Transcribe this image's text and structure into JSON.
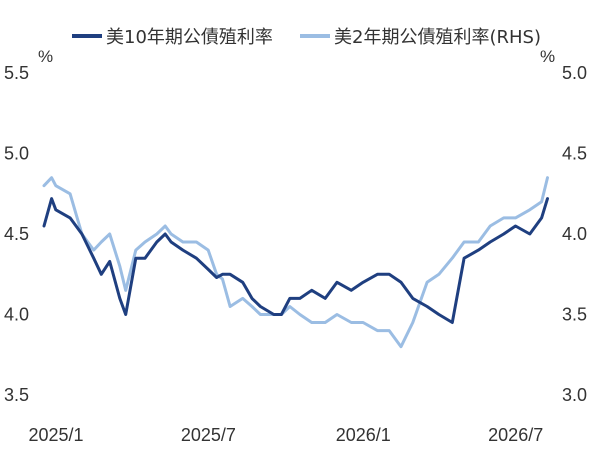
{
  "chart_data": {
    "type": "line",
    "title": "",
    "xlabel": "",
    "ylabel": "",
    "left_unit": "%",
    "right_unit": "%",
    "x_ticks": [
      "2025/1",
      "2025/7",
      "2026/1",
      "2026/7"
    ],
    "left_axis": {
      "ticks": [
        "5.5",
        "5.0",
        "4.5",
        "4.0",
        "3.5"
      ],
      "ylim": [
        3.5,
        5.5
      ]
    },
    "right_axis": {
      "ticks": [
        "5.0",
        "4.5",
        "4.0",
        "3.5",
        "3.0"
      ],
      "ylim": [
        3.0,
        5.0
      ]
    },
    "grid": false,
    "legend_position": "top",
    "series": [
      {
        "name": "美10年期公債殖利率",
        "axis": "left",
        "color": "#1f3f80",
        "x": [
          "2025-01-01",
          "2025-01-10",
          "2025-01-15",
          "2025-02-01",
          "2025-02-15",
          "2025-03-01",
          "2025-03-10",
          "2025-03-20",
          "2025-04-01",
          "2025-04-08",
          "2025-04-20",
          "2025-05-01",
          "2025-05-15",
          "2025-05-25",
          "2025-06-01",
          "2025-06-15",
          "2025-07-01",
          "2025-07-15",
          "2025-07-25",
          "2025-08-01",
          "2025-08-10",
          "2025-08-25",
          "2025-09-05",
          "2025-09-15",
          "2025-10-01",
          "2025-10-10",
          "2025-10-20",
          "2025-11-01",
          "2025-11-15",
          "2025-12-01",
          "2025-12-15",
          "2026-01-01",
          "2026-01-15",
          "2026-02-01",
          "2026-02-15",
          "2026-03-01",
          "2026-03-15",
          "2026-04-01",
          "2026-04-15",
          "2026-05-01",
          "2026-05-15",
          "2026-06-01",
          "2026-06-15",
          "2026-07-01",
          "2026-07-15",
          "2026-08-01",
          "2026-08-15",
          "2026-08-22"
        ],
        "values": [
          4.55,
          4.72,
          4.65,
          4.6,
          4.5,
          4.35,
          4.25,
          4.33,
          4.1,
          4.0,
          4.35,
          4.35,
          4.45,
          4.5,
          4.45,
          4.4,
          4.35,
          4.28,
          4.23,
          4.25,
          4.25,
          4.2,
          4.1,
          4.05,
          4.0,
          4.0,
          4.1,
          4.1,
          4.15,
          4.1,
          4.2,
          4.15,
          4.2,
          4.25,
          4.25,
          4.2,
          4.1,
          4.05,
          4.0,
          3.95,
          4.35,
          4.4,
          4.45,
          4.5,
          4.55,
          4.5,
          4.6,
          4.72
        ]
      },
      {
        "name": "美2年期公債殖利率(RHS)",
        "axis": "right",
        "color": "#9bbde3",
        "x": [
          "2025-01-01",
          "2025-01-10",
          "2025-01-15",
          "2025-02-01",
          "2025-02-15",
          "2025-03-01",
          "2025-03-10",
          "2025-03-20",
          "2025-04-01",
          "2025-04-08",
          "2025-04-20",
          "2025-05-01",
          "2025-05-15",
          "2025-05-25",
          "2025-06-01",
          "2025-06-15",
          "2025-07-01",
          "2025-07-15",
          "2025-07-25",
          "2025-08-01",
          "2025-08-10",
          "2025-08-25",
          "2025-09-05",
          "2025-09-15",
          "2025-10-01",
          "2025-10-10",
          "2025-10-20",
          "2025-11-01",
          "2025-11-15",
          "2025-12-01",
          "2025-12-15",
          "2026-01-01",
          "2026-01-15",
          "2026-02-01",
          "2026-02-15",
          "2026-03-01",
          "2026-03-15",
          "2026-04-01",
          "2026-04-15",
          "2026-05-01",
          "2026-05-15",
          "2026-06-01",
          "2026-06-15",
          "2026-07-01",
          "2026-07-15",
          "2026-08-01",
          "2026-08-15",
          "2026-08-22"
        ],
        "values": [
          4.3,
          4.35,
          4.3,
          4.25,
          4.0,
          3.9,
          3.95,
          4.0,
          3.8,
          3.65,
          3.9,
          3.95,
          4.0,
          4.05,
          4.0,
          3.95,
          3.95,
          3.9,
          3.75,
          3.72,
          3.55,
          3.6,
          3.55,
          3.5,
          3.5,
          3.5,
          3.55,
          3.5,
          3.45,
          3.45,
          3.5,
          3.45,
          3.45,
          3.4,
          3.4,
          3.3,
          3.45,
          3.7,
          3.75,
          3.85,
          3.95,
          3.95,
          4.05,
          4.1,
          4.1,
          4.15,
          4.2,
          4.35
        ]
      }
    ]
  }
}
